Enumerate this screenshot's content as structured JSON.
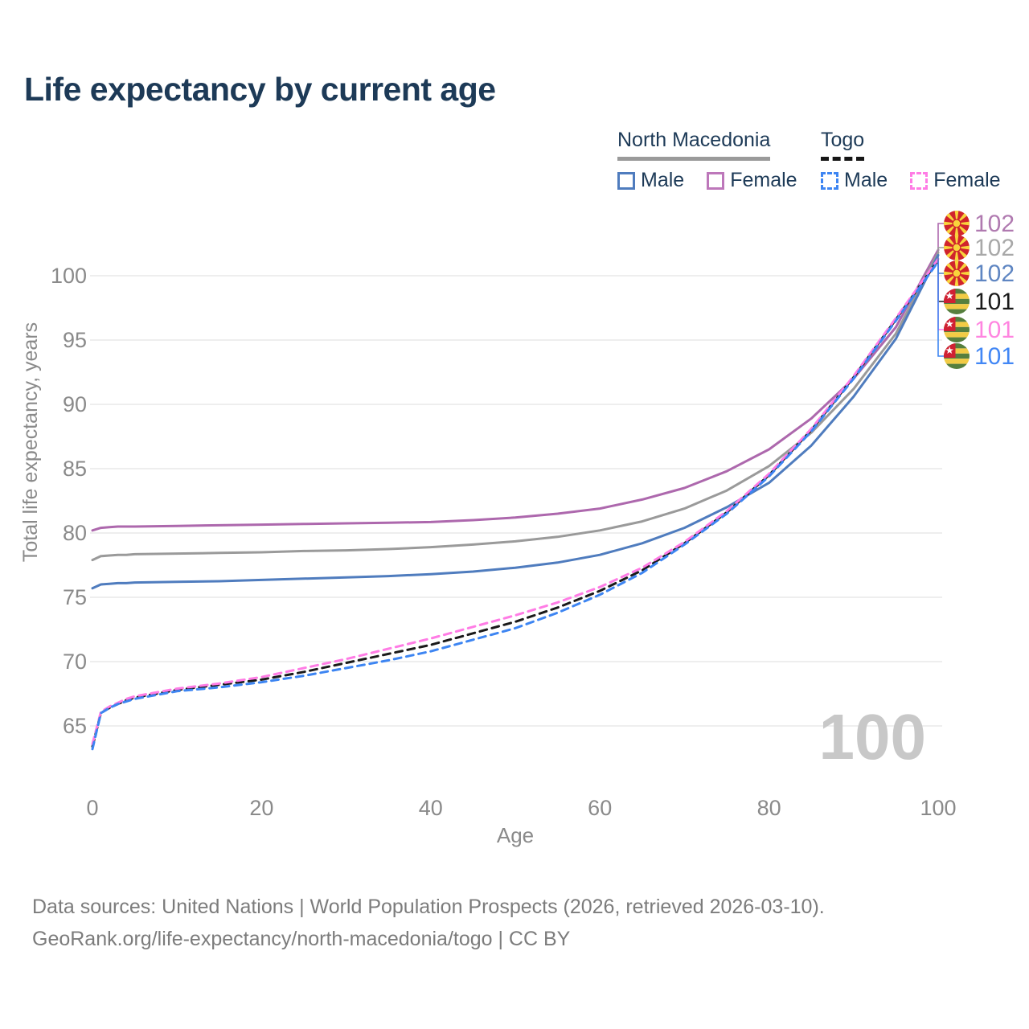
{
  "title": "Life expectancy by current age",
  "legend": {
    "group1": {
      "label": "North Macedonia",
      "underline_style": "solid",
      "underline_color": "#9a9a9a",
      "items": [
        {
          "label": "Male",
          "color": "#4f7cbe",
          "dashed": false
        },
        {
          "label": "Female",
          "color": "#bd77ba",
          "dashed": false
        }
      ]
    },
    "group2": {
      "label": "Togo",
      "underline_style": "dashed",
      "underline_color": "#161616",
      "items": [
        {
          "label": "Male",
          "color": "#3d85f2",
          "dashed": true
        },
        {
          "label": "Female",
          "color": "#ff7ce5",
          "dashed": true
        }
      ]
    }
  },
  "chart_data": {
    "type": "line",
    "title": "Life expectancy by current age",
    "xlabel": "Age",
    "ylabel": "Total life expectancy, years",
    "xlim": [
      0,
      100
    ],
    "ylim": [
      62,
      103
    ],
    "x_ticks": [
      0,
      20,
      40,
      60,
      80,
      100
    ],
    "y_ticks": [
      65,
      70,
      75,
      80,
      85,
      90,
      95,
      100
    ],
    "grid": "horizontal",
    "grid_color": "#e9e9e9",
    "axis_text_color": "#8a8a8a",
    "x": [
      0,
      1,
      2,
      3,
      4,
      5,
      10,
      15,
      20,
      25,
      30,
      35,
      40,
      45,
      50,
      55,
      60,
      65,
      70,
      75,
      80,
      85,
      90,
      95,
      100
    ],
    "series": [
      {
        "key": "nm_female",
        "name": "North Macedonia Female",
        "country": "North Macedonia",
        "sex": "Female",
        "color": "#ad68ad",
        "dashed": false,
        "values": [
          80.2,
          80.4,
          80.45,
          80.5,
          80.5,
          80.5,
          80.55,
          80.6,
          80.65,
          80.7,
          80.75,
          80.8,
          80.85,
          81.0,
          81.2,
          81.5,
          81.9,
          82.6,
          83.5,
          84.8,
          86.5,
          88.9,
          92.0,
          96.0,
          102.0
        ]
      },
      {
        "key": "nm_all",
        "name": "North Macedonia Both sexes",
        "country": "North Macedonia",
        "sex": "All",
        "color": "#9a9a9a",
        "dashed": false,
        "values": [
          77.9,
          78.2,
          78.25,
          78.3,
          78.3,
          78.35,
          78.4,
          78.45,
          78.5,
          78.6,
          78.65,
          78.75,
          78.9,
          79.1,
          79.35,
          79.7,
          80.2,
          80.9,
          81.9,
          83.3,
          85.2,
          87.8,
          91.2,
          95.5,
          101.8
        ]
      },
      {
        "key": "nm_male",
        "name": "North Macedonia Male",
        "country": "North Macedonia",
        "sex": "Male",
        "color": "#4f7cbe",
        "dashed": false,
        "values": [
          75.7,
          76.0,
          76.05,
          76.1,
          76.1,
          76.15,
          76.2,
          76.25,
          76.35,
          76.45,
          76.55,
          76.65,
          76.8,
          77.0,
          77.3,
          77.7,
          78.3,
          79.2,
          80.4,
          82.0,
          83.9,
          86.8,
          90.6,
          95.1,
          101.6
        ]
      },
      {
        "key": "togo_all",
        "name": "Togo Both sexes",
        "country": "Togo",
        "sex": "All",
        "color": "#1a1a1a",
        "dashed": true,
        "values": [
          63.4,
          66.0,
          66.4,
          66.7,
          67.0,
          67.2,
          67.8,
          68.2,
          68.6,
          69.2,
          69.9,
          70.6,
          71.3,
          72.2,
          73.1,
          74.2,
          75.5,
          77.1,
          79.2,
          81.6,
          84.5,
          88.0,
          92.1,
          96.6,
          101.2
        ]
      },
      {
        "key": "togo_female",
        "name": "Togo Female",
        "country": "Togo",
        "sex": "Female",
        "color": "#ff7ce5",
        "dashed": true,
        "values": [
          63.6,
          66.1,
          66.5,
          66.8,
          67.1,
          67.3,
          67.9,
          68.3,
          68.8,
          69.5,
          70.2,
          71.0,
          71.8,
          72.7,
          73.6,
          74.6,
          75.8,
          77.3,
          79.3,
          81.7,
          84.6,
          88.1,
          92.2,
          96.7,
          101.3
        ]
      },
      {
        "key": "togo_male",
        "name": "Togo Male",
        "country": "Togo",
        "sex": "Male",
        "color": "#3d85f2",
        "dashed": true,
        "values": [
          63.2,
          66.0,
          66.4,
          66.7,
          66.9,
          67.1,
          67.7,
          68.0,
          68.4,
          68.9,
          69.5,
          70.1,
          70.8,
          71.7,
          72.6,
          73.8,
          75.2,
          76.9,
          79.1,
          81.5,
          84.4,
          87.9,
          92.0,
          96.5,
          101.1
        ]
      }
    ],
    "end_labels": [
      {
        "series": "nm_female",
        "value": "102",
        "color": "#b07ab0",
        "flag": "mk"
      },
      {
        "series": "nm_all",
        "value": "102",
        "color": "#a8a8a8",
        "flag": "mk"
      },
      {
        "series": "nm_male",
        "value": "102",
        "color": "#5f86c2",
        "flag": "mk"
      },
      {
        "series": "togo_all",
        "value": "101",
        "color": "#1a1a1a",
        "flag": "tg"
      },
      {
        "series": "togo_female",
        "value": "101",
        "color": "#ff85e0",
        "flag": "tg"
      },
      {
        "series": "togo_male",
        "value": "101",
        "color": "#4287f5",
        "flag": "tg"
      }
    ],
    "legend_position": "top-right",
    "watermark": "100"
  },
  "footer": {
    "line1": "Data sources: United Nations | World Population Prospects (2026, retrieved 2026-03-10).",
    "line2": "GeoRank.org/life-expectancy/north-macedonia/togo | CC BY"
  }
}
